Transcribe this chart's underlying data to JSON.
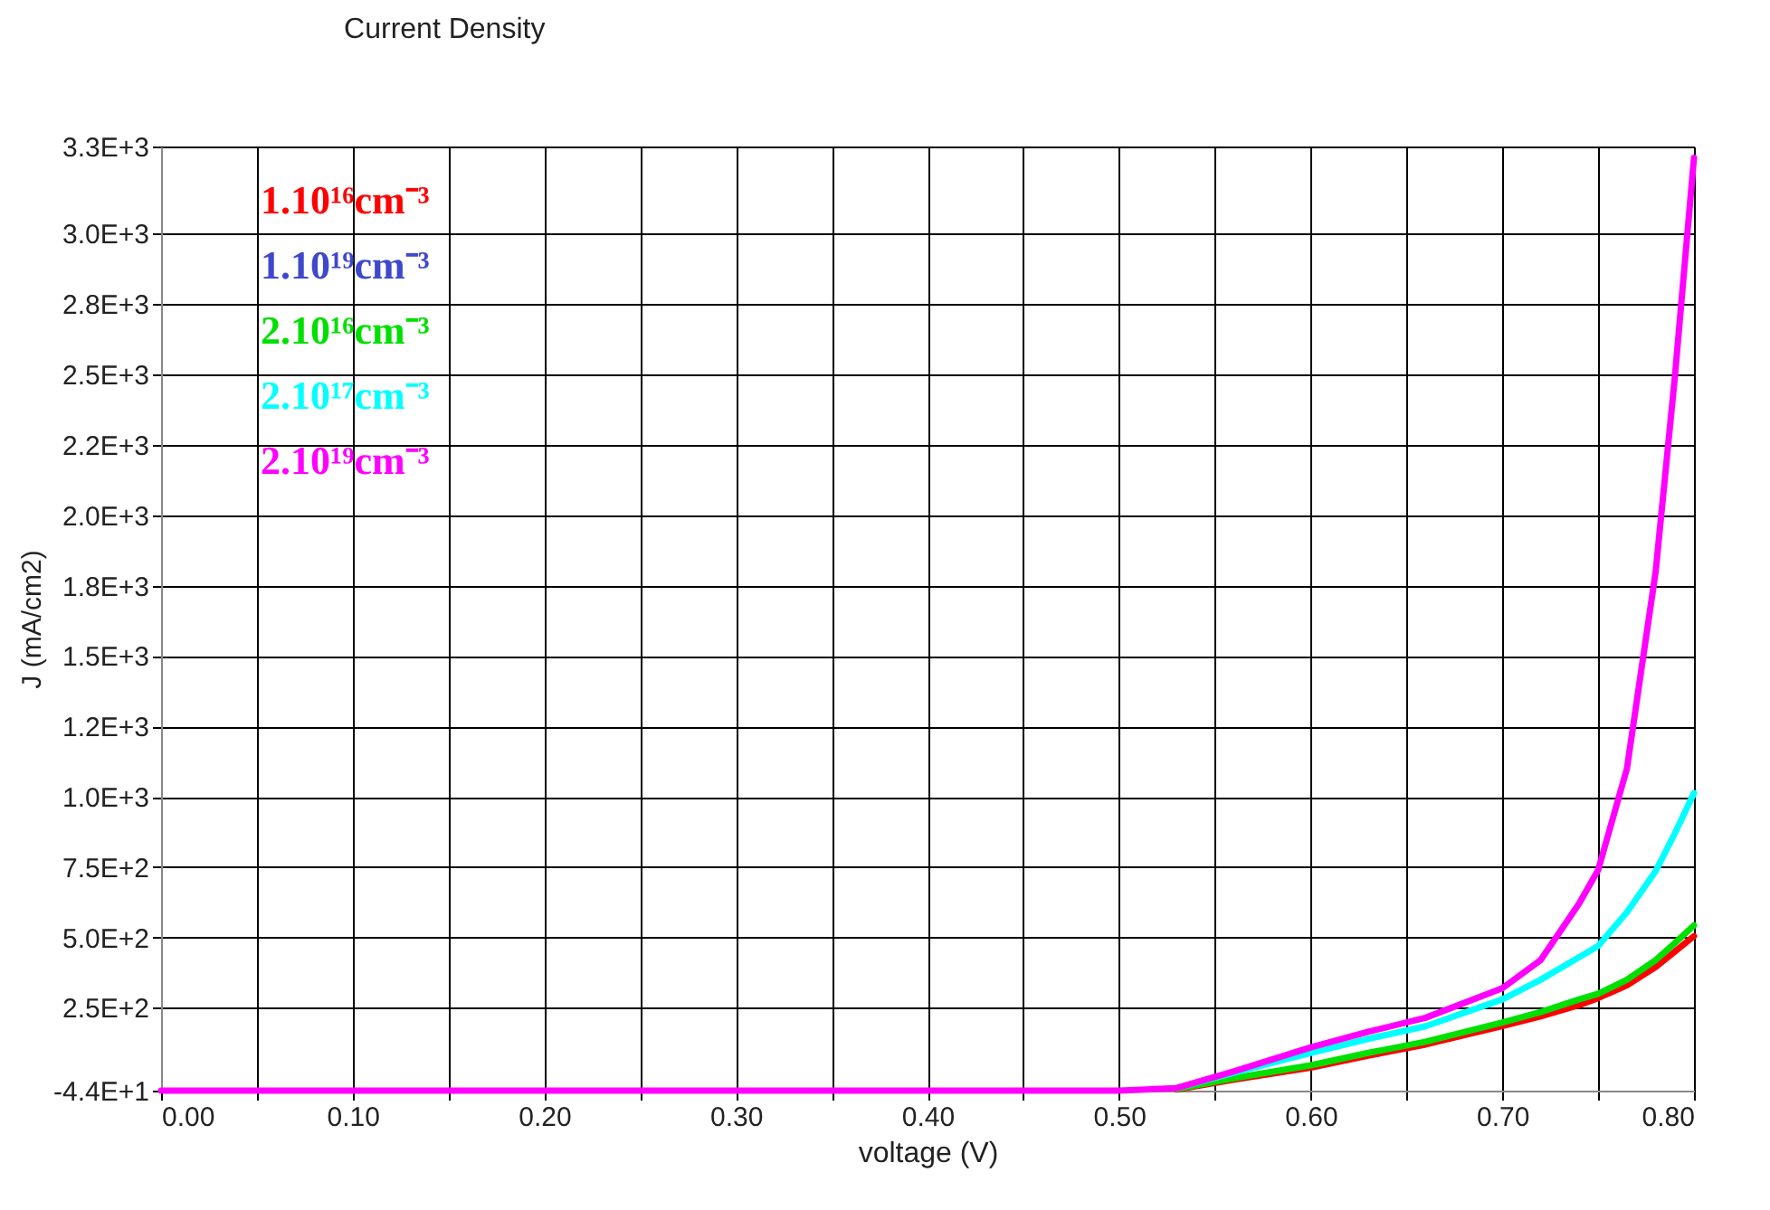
{
  "chart_data": {
    "type": "line",
    "title": "Current Density",
    "xlabel": "voltage (V)",
    "ylabel": "J (mA/cm2)",
    "x": [
      0,
      0.1,
      0.2,
      0.3,
      0.4,
      0.45,
      0.5,
      0.53,
      0.56,
      0.6,
      0.63,
      0.66,
      0.7,
      0.72,
      0.74,
      0.75,
      0.765,
      0.78,
      0.79,
      0.8
    ],
    "series": [
      {
        "name": "1.10¹⁶cm⁻³",
        "color": "#ff0000",
        "values": [
          null,
          null,
          null,
          null,
          null,
          null,
          null,
          -40,
          -5,
          38,
          80,
          120,
          185,
          220,
          260,
          285,
          330,
          395,
          450,
          505
        ]
      },
      {
        "name": "1.10¹⁹cm⁻³",
        "color": "#3f48cc",
        "values": [
          null,
          null,
          null,
          null,
          null,
          null,
          null,
          null,
          null,
          null,
          null,
          null,
          null,
          null,
          null,
          null,
          null,
          null,
          null,
          null
        ]
      },
      {
        "name": "2.10¹⁶cm⁻³",
        "color": "#00e000",
        "values": [
          null,
          null,
          null,
          null,
          null,
          null,
          null,
          -38,
          0,
          46,
          90,
          130,
          198,
          235,
          280,
          300,
          350,
          420,
          480,
          543
        ]
      },
      {
        "name": "2.10¹⁷cm⁻³",
        "color": "#00ffff",
        "values": [
          null,
          null,
          null,
          null,
          null,
          null,
          null,
          -35,
          20,
          90,
          140,
          185,
          280,
          350,
          430,
          470,
          590,
          736,
          870,
          1013
        ]
      },
      {
        "name": "2.10¹⁹cm⁻³",
        "color": "#ff00ff",
        "values": [
          -44,
          -44,
          -44,
          -44,
          -44,
          -44,
          -44,
          -35,
          25,
          110,
          165,
          215,
          320,
          420,
          620,
          740,
          1100,
          1800,
          2490,
          3270
        ]
      }
    ],
    "xlim": [
      0,
      0.8
    ],
    "xticks": [
      {
        "value": 0,
        "label": "0.00"
      },
      {
        "value": 0.05,
        "label": null
      },
      {
        "value": 0.1,
        "label": "0.10"
      },
      {
        "value": 0.15,
        "label": null
      },
      {
        "value": 0.2,
        "label": "0.20"
      },
      {
        "value": 0.25,
        "label": null
      },
      {
        "value": 0.3,
        "label": "0.30"
      },
      {
        "value": 0.35,
        "label": null
      },
      {
        "value": 0.4,
        "label": "0.40"
      },
      {
        "value": 0.45,
        "label": null
      },
      {
        "value": 0.5,
        "label": "0.50"
      },
      {
        "value": 0.55,
        "label": null
      },
      {
        "value": 0.6,
        "label": "0.60"
      },
      {
        "value": 0.65,
        "label": null
      },
      {
        "value": 0.7,
        "label": "0.70"
      },
      {
        "value": 0.75,
        "label": null
      },
      {
        "value": 0.8,
        "label": "0.80"
      }
    ],
    "ylim": [
      -44,
      3310
    ],
    "yticks": [
      {
        "value": -44,
        "label": "-4.4E+1"
      },
      {
        "value": 250,
        "label": "2.5E+2"
      },
      {
        "value": 500,
        "label": "5.0E+2"
      },
      {
        "value": 750,
        "label": "7.5E+2"
      },
      {
        "value": 1000,
        "label": "1.0E+3"
      },
      {
        "value": 1250,
        "label": "1.2E+3"
      },
      {
        "value": 1500,
        "label": "1.5E+3"
      },
      {
        "value": 1750,
        "label": "1.8E+3"
      },
      {
        "value": 2000,
        "label": "2.0E+3"
      },
      {
        "value": 2250,
        "label": "2.2E+3"
      },
      {
        "value": 2500,
        "label": "2.5E+3"
      },
      {
        "value": 2750,
        "label": "2.8E+3"
      },
      {
        "value": 3000,
        "label": "3.0E+3"
      },
      {
        "value": 3310,
        "label": "3.3E+3"
      }
    ],
    "grid": true,
    "legend": "top left",
    "marker": "none",
    "line_style": "solid"
  }
}
